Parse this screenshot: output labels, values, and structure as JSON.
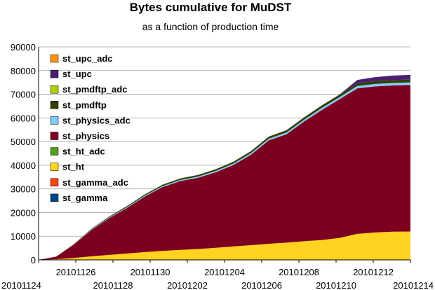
{
  "chart_data": {
    "type": "area",
    "stacked": true,
    "title": "Bytes cumulative for MuDST",
    "subtitle": "as a function of production time",
    "xlabel": "",
    "ylabel": "",
    "ylim": [
      0,
      90000
    ],
    "yticks": [
      0,
      10000,
      20000,
      30000,
      40000,
      50000,
      60000,
      70000,
      80000,
      90000
    ],
    "x_tick_labels": [
      "20101124",
      "20101126",
      "20101128",
      "20101130",
      "20101202",
      "20101204",
      "20101206",
      "20101208",
      "20101210",
      "20101212",
      "20101214"
    ],
    "x": [
      "20101124",
      "20101124b",
      "20101125",
      "20101126",
      "20101127",
      "20101128",
      "20101129",
      "20101130",
      "20101201",
      "20101202",
      "20101203",
      "20101204",
      "20101205",
      "20101206",
      "20101207",
      "20101208",
      "20101209",
      "20101210",
      "20101211",
      "20101212",
      "20101213",
      "20101214"
    ],
    "grid": true,
    "legend_position": "left",
    "series": [
      {
        "name": "st_gamma",
        "color": "#004586",
        "values": [
          0,
          0,
          0,
          0,
          0,
          0,
          0,
          0,
          0,
          0,
          0,
          0,
          0,
          0,
          0,
          0,
          0,
          0,
          0,
          0,
          0,
          0
        ]
      },
      {
        "name": "st_gamma_adc",
        "color": "#ff420e",
        "values": [
          0,
          0,
          0,
          0,
          0,
          0,
          0,
          0,
          0,
          0,
          0,
          0,
          0,
          0,
          0,
          0,
          0,
          0,
          0,
          0,
          0,
          0
        ]
      },
      {
        "name": "st_ht",
        "color": "#ffd320",
        "values": [
          0,
          300,
          800,
          1500,
          2100,
          2700,
          3300,
          3800,
          4200,
          4600,
          5100,
          5700,
          6200,
          6800,
          7300,
          7900,
          8400,
          9300,
          11000,
          11600,
          11900,
          12000
        ]
      },
      {
        "name": "st_ht_adc",
        "color": "#579d1c",
        "values": [
          0,
          0,
          0,
          0,
          0,
          0,
          0,
          0,
          0,
          0,
          0,
          0,
          0,
          0,
          0,
          0,
          0,
          0,
          0,
          0,
          0,
          0
        ]
      },
      {
        "name": "st_physics",
        "color": "#7e0021",
        "values": [
          0,
          1100,
          5700,
          11200,
          15600,
          19300,
          23500,
          27000,
          29100,
          30100,
          31900,
          34400,
          38300,
          43700,
          45800,
          50600,
          55000,
          58600,
          61500,
          61700,
          61800,
          61900
        ]
      },
      {
        "name": "st_physics_adc",
        "color": "#83caff",
        "values": [
          0,
          0,
          100,
          200,
          250,
          300,
          350,
          400,
          450,
          500,
          550,
          600,
          650,
          700,
          750,
          800,
          850,
          900,
          1000,
          1050,
          1100,
          1100
        ]
      },
      {
        "name": "st_pmdftp",
        "color": "#314004",
        "values": [
          0,
          0,
          150,
          300,
          400,
          500,
          550,
          600,
          650,
          700,
          750,
          800,
          850,
          900,
          950,
          1000,
          1050,
          1100,
          1150,
          1200,
          1200,
          1200
        ]
      },
      {
        "name": "st_pmdftp_adc",
        "color": "#aecf00",
        "values": [
          0,
          0,
          0,
          0,
          0,
          0,
          0,
          0,
          0,
          0,
          0,
          0,
          0,
          0,
          0,
          0,
          0,
          0,
          0,
          0,
          0,
          0
        ]
      },
      {
        "name": "st_upc",
        "color": "#4b1f6f",
        "values": [
          0,
          0,
          0,
          0,
          0,
          0,
          0,
          0,
          0,
          0,
          0,
          0,
          0,
          0,
          0,
          0,
          0,
          0,
          1400,
          1700,
          1900,
          2000
        ]
      },
      {
        "name": "st_upc_adc",
        "color": "#ff950e",
        "values": [
          0,
          0,
          0,
          0,
          0,
          0,
          0,
          0,
          0,
          0,
          0,
          0,
          0,
          0,
          0,
          0,
          0,
          0,
          0,
          0,
          0,
          0
        ]
      }
    ],
    "legend_order": [
      "st_upc_adc",
      "st_upc",
      "st_pmdftp_adc",
      "st_pmdftp",
      "st_physics_adc",
      "st_physics",
      "st_ht_adc",
      "st_ht",
      "st_gamma_adc",
      "st_gamma"
    ]
  }
}
